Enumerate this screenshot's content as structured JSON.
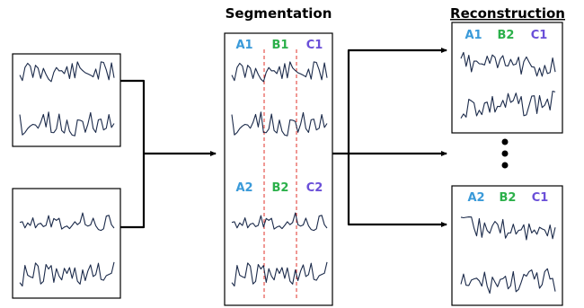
{
  "titles": {
    "segmentation": "Segmentation",
    "reconstruction": "Reconstruction"
  },
  "segmentation_labels": {
    "row1": [
      "A1",
      "B1",
      "C1"
    ],
    "row2": [
      "A2",
      "B2",
      "C2"
    ]
  },
  "reconstruction_labels": {
    "top": [
      "A1",
      "B2",
      "C1"
    ],
    "bottom": [
      "A2",
      "B2",
      "C1"
    ]
  },
  "colors": {
    "A": "#3a9ad9",
    "B": "#2bb04a",
    "C": "#6a4fd8",
    "cut_line": "#e0302a",
    "signal": "#1b2a4a"
  }
}
